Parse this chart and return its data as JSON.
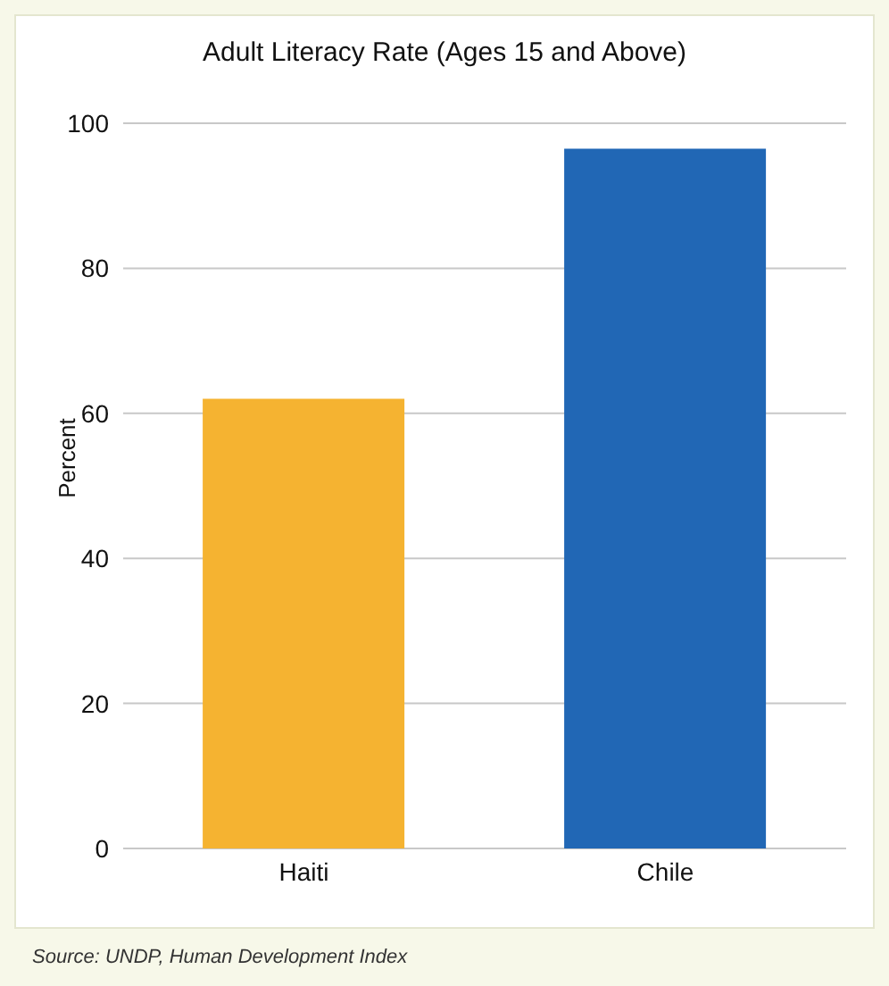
{
  "chart_data": {
    "type": "bar",
    "title": "Adult Literacy Rate (Ages 15 and Above)",
    "ylabel": "Percent",
    "categories": [
      "Haiti",
      "Chile"
    ],
    "values": [
      62,
      96.5
    ],
    "colors": [
      "#f5b331",
      "#2167b5"
    ],
    "ylim": [
      0,
      100
    ],
    "yticks": [
      0,
      20,
      40,
      60,
      80,
      100
    ],
    "grid": "y",
    "annotations": [
      "Source: UNDP, Human Development Index"
    ]
  }
}
